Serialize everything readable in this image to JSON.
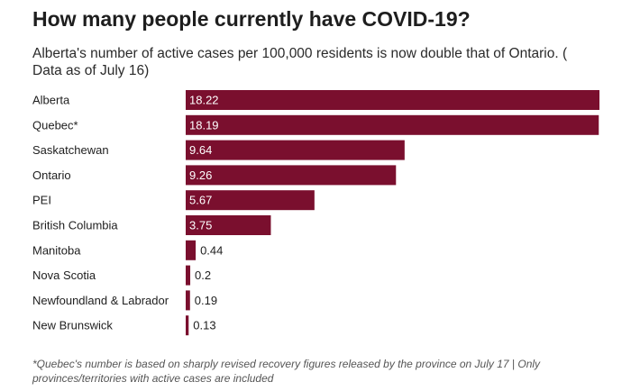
{
  "chart_data": {
    "type": "bar",
    "orientation": "horizontal",
    "title": "How many people currently have COVID-19?",
    "subtitle": "Alberta's number of active cases per 100,000 residents is now double that of Ontario. ( Data as of July 16)",
    "categories": [
      "Alberta",
      "Quebec*",
      "Saskatchewan",
      "Ontario",
      "PEI",
      "British Columbia",
      "Manitoba",
      "Nova Scotia",
      "Newfoundland & Labrador",
      "New Brunswick"
    ],
    "values": [
      18.22,
      18.19,
      9.64,
      9.26,
      5.67,
      3.75,
      0.44,
      0.2,
      0.19,
      0.13
    ],
    "value_labels": [
      "18.22",
      "18.19",
      "9.64",
      "9.26",
      "5.67",
      "3.75",
      "0.44",
      "0.2",
      "0.19",
      "0.13"
    ],
    "xlim": [
      0,
      18.22
    ],
    "xlabel": "",
    "ylabel": "",
    "footnote": "*Quebec's number is based on sharply revised recovery figures released by the province on July 17 | Only provinces/territories with active cases are included",
    "colors": {
      "bar": "#7a0f2e",
      "label_inside": "#ffffff",
      "label_outside": "#1e1e1e"
    }
  }
}
